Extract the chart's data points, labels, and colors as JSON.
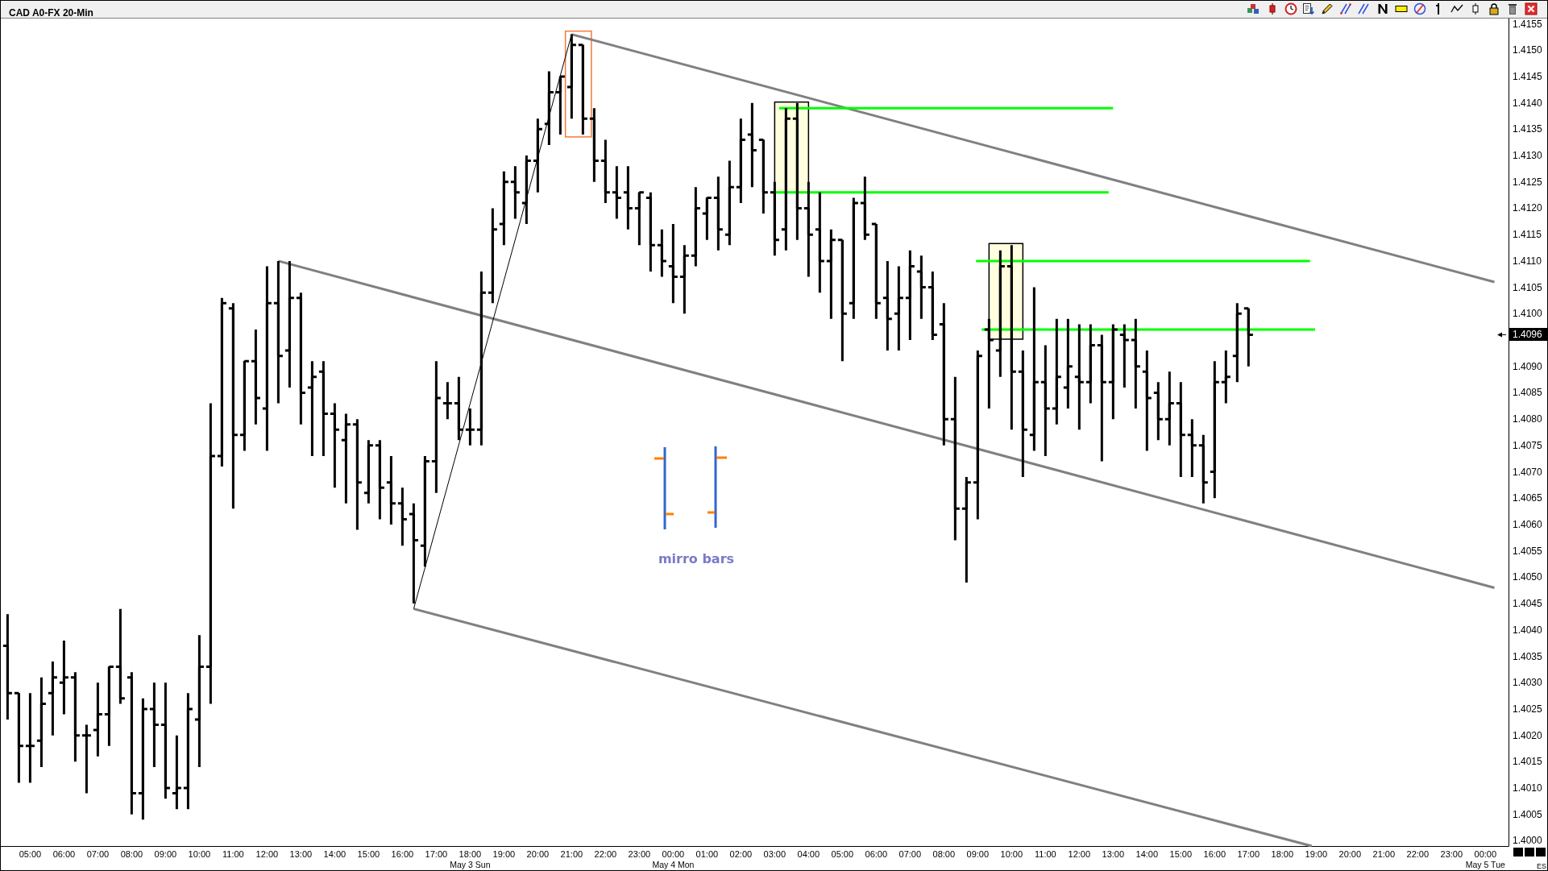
{
  "chart_data": {
    "type": "candlestick",
    "title": "CAD A0-FX 20-Min",
    "x": [
      "--05-03T04:20",
      "--05-03T04:40",
      "--05-03T05:00",
      "--05-03T05:20",
      "--05-03T05:40",
      "--05-03T06:00",
      "--05-03T06:20",
      "--05-03T06:40",
      "--05-03T07:00",
      "--05-03T07:20",
      "--05-03T07:40",
      "--05-03T08:00",
      "--05-03T08:20",
      "--05-03T08:40",
      "--05-03T09:00",
      "--05-03T09:20",
      "--05-03T09:40",
      "--05-03T10:00",
      "--05-03T10:20",
      "--05-03T10:40",
      "--05-03T11:00",
      "--05-03T11:20",
      "--05-03T11:40",
      "--05-03T12:00",
      "--05-03T12:20",
      "--05-03T12:40",
      "--05-03T13:00",
      "--05-03T13:20",
      "--05-03T13:40",
      "--05-03T14:00",
      "--05-03T14:20",
      "--05-03T14:40",
      "--05-03T15:00",
      "--05-03T15:20",
      "--05-03T15:40",
      "--05-03T16:00",
      "--05-03T16:20",
      "--05-03T16:40",
      "--05-03T17:00",
      "--05-03T17:20",
      "--05-03T17:40",
      "--05-03T18:00",
      "--05-03T18:20",
      "--05-03T18:40",
      "--05-03T19:00",
      "--05-03T19:20",
      "--05-03T19:40",
      "--05-03T20:00",
      "--05-03T20:20",
      "--05-03T20:40",
      "--05-03T21:00",
      "--05-03T21:20",
      "--05-03T21:40",
      "--05-03T22:00",
      "--05-03T22:20",
      "--05-03T22:40",
      "--05-03T23:00",
      "--05-03T23:20",
      "--05-03T23:40",
      "--05-04T00:00",
      "--05-04T00:20",
      "--05-04T00:40",
      "--05-04T01:00",
      "--05-04T01:20",
      "--05-04T01:40",
      "--05-04T02:00",
      "--05-04T02:20",
      "--05-04T02:40",
      "--05-04T03:00",
      "--05-04T03:20",
      "--05-04T03:40",
      "--05-04T04:00",
      "--05-04T04:20",
      "--05-04T04:40",
      "--05-04T05:00",
      "--05-04T05:20",
      "--05-04T05:40",
      "--05-04T06:00",
      "--05-04T06:20",
      "--05-04T06:40",
      "--05-04T07:00",
      "--05-04T07:20",
      "--05-04T07:40",
      "--05-04T08:00",
      "--05-04T08:20",
      "--05-04T08:40",
      "--05-04T09:00",
      "--05-04T09:20",
      "--05-04T09:40",
      "--05-04T10:00",
      "--05-04T10:20",
      "--05-04T10:40",
      "--05-04T11:00",
      "--05-04T11:20",
      "--05-04T11:40",
      "--05-04T12:00",
      "--05-04T12:20",
      "--05-04T12:40",
      "--05-04T13:00",
      "--05-04T13:20",
      "--05-04T13:40",
      "--05-04T14:00",
      "--05-04T14:20",
      "--05-04T14:40",
      "--05-04T15:00",
      "--05-04T15:20",
      "--05-04T15:40",
      "--05-04T16:00",
      "--05-04T16:20",
      "--05-04T16:40",
      "--05-04T17:00"
    ],
    "ohlc": [
      [
        1.4037,
        1.4043,
        1.4023,
        1.4028
      ],
      [
        1.4028,
        1.4028,
        1.4011,
        1.4018
      ],
      [
        1.4018,
        1.4028,
        1.4011,
        1.4018
      ],
      [
        1.4019,
        1.4031,
        1.4014,
        1.4026
      ],
      [
        1.4028,
        1.4034,
        1.402,
        1.4031
      ],
      [
        1.403,
        1.4038,
        1.4024,
        1.4031
      ],
      [
        1.4031,
        1.4032,
        1.4015,
        1.402
      ],
      [
        1.402,
        1.4022,
        1.4009,
        1.402
      ],
      [
        1.4021,
        1.403,
        1.4016,
        1.4024
      ],
      [
        1.4024,
        1.4033,
        1.4018,
        1.4033
      ],
      [
        1.4033,
        1.4044,
        1.4026,
        1.4027
      ],
      [
        1.4031,
        1.4032,
        1.4005,
        1.4009
      ],
      [
        1.4009,
        1.4027,
        1.4004,
        1.4025
      ],
      [
        1.4025,
        1.403,
        1.4014,
        1.4022
      ],
      [
        1.4022,
        1.403,
        1.4008,
        1.401
      ],
      [
        1.4009,
        1.402,
        1.4006,
        1.401
      ],
      [
        1.401,
        1.4028,
        1.4006,
        1.4025
      ],
      [
        1.4023,
        1.4039,
        1.4014,
        1.4033
      ],
      [
        1.4033,
        1.4083,
        1.4026,
        1.4073
      ],
      [
        1.4073,
        1.4103,
        1.4071,
        1.4102
      ],
      [
        1.4101,
        1.4102,
        1.4063,
        1.4077
      ],
      [
        1.4077,
        1.4091,
        1.4074,
        1.4091
      ],
      [
        1.4091,
        1.4097,
        1.4079,
        1.4084
      ],
      [
        1.4082,
        1.4109,
        1.4074,
        1.4102
      ],
      [
        1.4102,
        1.411,
        1.4083,
        1.4092
      ],
      [
        1.4093,
        1.411,
        1.4086,
        1.4103
      ],
      [
        1.4103,
        1.4104,
        1.4079,
        1.4085
      ],
      [
        1.4086,
        1.4091,
        1.4073,
        1.4088
      ],
      [
        1.4089,
        1.4091,
        1.4073,
        1.4081
      ],
      [
        1.4081,
        1.4083,
        1.4067,
        1.4078
      ],
      [
        1.4076,
        1.4081,
        1.4064,
        1.4079
      ],
      [
        1.4079,
        1.408,
        1.4059,
        1.4068
      ],
      [
        1.4066,
        1.4076,
        1.4064,
        1.4075
      ],
      [
        1.4075,
        1.4076,
        1.4061,
        1.4067
      ],
      [
        1.4068,
        1.4073,
        1.406,
        1.4064
      ],
      [
        1.4064,
        1.4067,
        1.4056,
        1.4061
      ],
      [
        1.4062,
        1.4064,
        1.4045,
        1.4057
      ],
      [
        1.4056,
        1.4073,
        1.4052,
        1.4072
      ],
      [
        1.4072,
        1.4091,
        1.4066,
        1.4084
      ],
      [
        1.4083,
        1.4087,
        1.408,
        1.4083
      ],
      [
        1.4083,
        1.4088,
        1.4076,
        1.4078
      ],
      [
        1.4078,
        1.4082,
        1.4075,
        1.4078
      ],
      [
        1.4078,
        1.4108,
        1.4075,
        1.4104
      ],
      [
        1.4104,
        1.412,
        1.4102,
        1.4116
      ],
      [
        1.4117,
        1.4127,
        1.4113,
        1.4125
      ],
      [
        1.4125,
        1.4128,
        1.4118,
        1.4123
      ],
      [
        1.4121,
        1.413,
        1.4117,
        1.4129
      ],
      [
        1.4129,
        1.4137,
        1.4123,
        1.4135
      ],
      [
        1.4136,
        1.4146,
        1.4132,
        1.4142
      ],
      [
        1.4142,
        1.4145,
        1.4134,
        1.4145
      ],
      [
        1.4143,
        1.4153,
        1.4137,
        1.4151
      ],
      [
        1.4151,
        1.4151,
        1.4134,
        1.4137
      ],
      [
        1.4137,
        1.4139,
        1.4125,
        1.4129
      ],
      [
        1.4129,
        1.4133,
        1.4121,
        1.4123
      ],
      [
        1.4123,
        1.4128,
        1.4118,
        1.4122
      ],
      [
        1.4123,
        1.4128,
        1.4116,
        1.412
      ],
      [
        1.412,
        1.4123,
        1.4113,
        1.4123
      ],
      [
        1.4122,
        1.4123,
        1.4108,
        1.4113
      ],
      [
        1.4113,
        1.4116,
        1.4107,
        1.411
      ],
      [
        1.4109,
        1.4117,
        1.4102,
        1.4107
      ],
      [
        1.4107,
        1.4113,
        1.41,
        1.4111
      ],
      [
        1.4111,
        1.4124,
        1.4109,
        1.412
      ],
      [
        1.4119,
        1.4122,
        1.4114,
        1.4122
      ],
      [
        1.4122,
        1.4126,
        1.4112,
        1.4116
      ],
      [
        1.4115,
        1.4129,
        1.4113,
        1.4124
      ],
      [
        1.4124,
        1.4137,
        1.4121,
        1.4133
      ],
      [
        1.4134,
        1.414,
        1.4124,
        1.4131
      ],
      [
        1.4133,
        1.4133,
        1.4119,
        1.4123
      ],
      [
        1.4123,
        1.4125,
        1.4111,
        1.4114
      ],
      [
        1.4116,
        1.4139,
        1.4112,
        1.4137
      ],
      [
        1.4137,
        1.414,
        1.4114,
        1.412
      ],
      [
        1.412,
        1.4125,
        1.4107,
        1.4115
      ],
      [
        1.4116,
        1.4123,
        1.4104,
        1.411
      ],
      [
        1.411,
        1.4116,
        1.4099,
        1.4114
      ],
      [
        1.4114,
        1.4114,
        1.4091,
        1.41
      ],
      [
        1.4102,
        1.4122,
        1.4099,
        1.4121
      ],
      [
        1.4121,
        1.4126,
        1.4114,
        1.4115
      ],
      [
        1.4117,
        1.4117,
        1.4099,
        1.4102
      ],
      [
        1.4103,
        1.411,
        1.4093,
        1.4099
      ],
      [
        1.41,
        1.4109,
        1.4093,
        1.4103
      ],
      [
        1.4103,
        1.4112,
        1.4095,
        1.4109
      ],
      [
        1.4108,
        1.4111,
        1.4099,
        1.4105
      ],
      [
        1.4105,
        1.4108,
        1.4095,
        1.4096
      ],
      [
        1.4098,
        1.4102,
        1.4075,
        1.408
      ],
      [
        1.408,
        1.4088,
        1.4057,
        1.4063
      ],
      [
        1.4063,
        1.4069,
        1.4049,
        1.4068
      ],
      [
        1.4068,
        1.4093,
        1.4061,
        1.4092
      ],
      [
        1.4097,
        1.4099,
        1.4082,
        1.4095
      ],
      [
        1.4093,
        1.4112,
        1.4088,
        1.4109
      ],
      [
        1.4109,
        1.4113,
        1.4078,
        1.4089
      ],
      [
        1.4089,
        1.4093,
        1.4069,
        1.4078
      ],
      [
        1.4077,
        1.4105,
        1.4074,
        1.4087
      ],
      [
        1.4087,
        1.4094,
        1.4073,
        1.4082
      ],
      [
        1.4082,
        1.4099,
        1.4079,
        1.4088
      ],
      [
        1.4086,
        1.4099,
        1.4082,
        1.409
      ],
      [
        1.4088,
        1.4098,
        1.4078,
        1.4087
      ],
      [
        1.4087,
        1.4098,
        1.4083,
        1.4094
      ],
      [
        1.4094,
        1.4096,
        1.4072,
        1.4087
      ],
      [
        1.4087,
        1.4098,
        1.408,
        1.4097
      ],
      [
        1.4096,
        1.4098,
        1.4086,
        1.4095
      ],
      [
        1.4095,
        1.4099,
        1.4082,
        1.409
      ],
      [
        1.4089,
        1.4093,
        1.4074,
        1.4084
      ],
      [
        1.4085,
        1.4087,
        1.4076,
        1.408
      ],
      [
        1.408,
        1.4089,
        1.4075,
        1.4083
      ],
      [
        1.4083,
        1.4087,
        1.4069,
        1.4077
      ],
      [
        1.4077,
        1.408,
        1.4069,
        1.4075
      ],
      [
        1.4075,
        1.4077,
        1.4064,
        1.4068
      ],
      [
        1.407,
        1.4091,
        1.4065,
        1.4087
      ],
      [
        1.4087,
        1.4093,
        1.4083,
        1.4088
      ],
      [
        1.4092,
        1.4102,
        1.4087,
        1.41
      ],
      [
        1.4101,
        1.4101,
        1.409,
        1.4096
      ]
    ],
    "color": "#000000",
    "series": [
      {
        "type": "line",
        "x": [
          "--05-03T21:00",
          "--05-05T00:16"
        ],
        "values": [
          1.4153,
          1.4106
        ],
        "color": "#808080"
      },
      {
        "type": "line",
        "x": [
          "--05-03T12:20",
          "--05-05T00:16"
        ],
        "values": [
          1.411,
          1.4048
        ],
        "color": "#808080"
      },
      {
        "type": "line",
        "x": [
          "--05-03T16:20",
          "--05-04T18:52"
        ],
        "values": [
          1.4044,
          1.3999
        ],
        "color": "#808080"
      },
      {
        "type": "line",
        "x": [
          "--05-03T16:20",
          "--05-03T21:00"
        ],
        "values": [
          1.4044,
          1.4153
        ],
        "color": "#000000"
      },
      {
        "type": "line",
        "x": [
          "--05-04T03:08",
          "--05-04T13:00"
        ],
        "values": [
          1.4139,
          1.4139
        ],
        "color": "#00ff00"
      },
      {
        "type": "line",
        "x": [
          "--05-04T03:00",
          "--05-04T12:52"
        ],
        "values": [
          1.4123,
          1.4123
        ],
        "color": "#00ff00"
      },
      {
        "type": "line",
        "x": [
          "--05-04T08:57",
          "--05-04T18:49"
        ],
        "values": [
          1.411,
          1.411
        ],
        "color": "#00ff00"
      },
      {
        "type": "line",
        "x": [
          "--05-04T09:07",
          "--05-04T18:58"
        ],
        "values": [
          1.4097,
          1.4097
        ],
        "color": "#00ff00"
      }
    ],
    "xlim": [
      "--05-03T04:08",
      "--05-05T00:41"
    ],
    "xticks": [
      {
        "value": "--05-03T05:00",
        "label": "05:00"
      },
      {
        "value": "--05-03T06:00",
        "label": "06:00"
      },
      {
        "value": "--05-03T07:00",
        "label": "07:00"
      },
      {
        "value": "--05-03T08:00",
        "label": "08:00"
      },
      {
        "value": "--05-03T09:00",
        "label": "09:00"
      },
      {
        "value": "--05-03T10:00",
        "label": "10:00"
      },
      {
        "value": "--05-03T11:00",
        "label": "11:00"
      },
      {
        "value": "--05-03T12:00",
        "label": "12:00"
      },
      {
        "value": "--05-03T13:00",
        "label": "13:00"
      },
      {
        "value": "--05-03T14:00",
        "label": "14:00"
      },
      {
        "value": "--05-03T15:00",
        "label": "15:00"
      },
      {
        "value": "--05-03T16:00",
        "label": "16:00"
      },
      {
        "value": "--05-03T17:00",
        "label": "17:00"
      },
      {
        "value": "--05-03T18:00",
        "label": "18:00\nMay 3 Sun"
      },
      {
        "value": "--05-03T19:00",
        "label": "19:00"
      },
      {
        "value": "--05-03T20:00",
        "label": "20:00"
      },
      {
        "value": "--05-03T21:00",
        "label": "21:00"
      },
      {
        "value": "--05-03T22:00",
        "label": "22:00"
      },
      {
        "value": "--05-03T23:00",
        "label": "23:00"
      },
      {
        "value": "--05-04T00:00",
        "label": "00:00\nMay 4 Mon"
      },
      {
        "value": "--05-04T01:00",
        "label": "01:00"
      },
      {
        "value": "--05-04T02:00",
        "label": "02:00"
      },
      {
        "value": "--05-04T03:00",
        "label": "03:00"
      },
      {
        "value": "--05-04T04:00",
        "label": "04:00"
      },
      {
        "value": "--05-04T05:00",
        "label": "05:00"
      },
      {
        "value": "--05-04T06:00",
        "label": "06:00"
      },
      {
        "value": "--05-04T07:00",
        "label": "07:00"
      },
      {
        "value": "--05-04T08:00",
        "label": "08:00"
      },
      {
        "value": "--05-04T09:00",
        "label": "09:00"
      },
      {
        "value": "--05-04T10:00",
        "label": "10:00"
      },
      {
        "value": "--05-04T11:00",
        "label": "11:00"
      },
      {
        "value": "--05-04T12:00",
        "label": "12:00"
      },
      {
        "value": "--05-04T13:00",
        "label": "13:00"
      },
      {
        "value": "--05-04T14:00",
        "label": "14:00"
      },
      {
        "value": "--05-04T15:00",
        "label": "15:00"
      },
      {
        "value": "--05-04T16:00",
        "label": "16:00"
      },
      {
        "value": "--05-04T17:00",
        "label": "17:00"
      },
      {
        "value": "--05-04T18:00",
        "label": "18:00"
      },
      {
        "value": "--05-04T19:00",
        "label": "19:00"
      },
      {
        "value": "--05-04T20:00",
        "label": "20:00"
      },
      {
        "value": "--05-04T21:00",
        "label": "21:00"
      },
      {
        "value": "--05-04T22:00",
        "label": "22:00"
      },
      {
        "value": "--05-04T23:00",
        "label": "23:00"
      },
      {
        "value": "--05-05T00:00",
        "label": "00:00\nMay 5 Tue"
      }
    ],
    "ylim": [
      1.3999,
      1.4156
    ],
    "yticks": [
      {
        "value": 1.4,
        "label": "1.4000"
      },
      1.4005,
      {
        "value": 1.401,
        "label": "1.4010"
      },
      1.4015,
      {
        "value": 1.402,
        "label": "1.4020"
      },
      1.4025,
      {
        "value": 1.403,
        "label": "1.4030"
      },
      1.4035,
      {
        "value": 1.404,
        "label": "1.4040"
      },
      1.4045,
      {
        "value": 1.405,
        "label": "1.4050"
      },
      1.4055,
      {
        "value": 1.406,
        "label": "1.4060"
      },
      1.4065,
      {
        "value": 1.407,
        "label": "1.4070"
      },
      1.4075,
      {
        "value": 1.408,
        "label": "1.4080"
      },
      1.4085,
      {
        "value": 1.409,
        "label": "1.4090"
      },
      {
        "value": 1.41,
        "label": "1.4100"
      },
      1.4105,
      {
        "value": 1.411,
        "label": "1.4110"
      },
      1.4115,
      {
        "value": 1.412,
        "label": "1.4120"
      },
      1.4125,
      {
        "value": 1.413,
        "label": "1.4130"
      },
      1.4135,
      {
        "value": 1.414,
        "label": "1.4140"
      },
      1.4145,
      {
        "value": 1.415,
        "label": "1.4150"
      },
      1.4155
    ],
    "annotations": [
      "mirro bars",
      "ES",
      "1.4096"
    ]
  }
}
